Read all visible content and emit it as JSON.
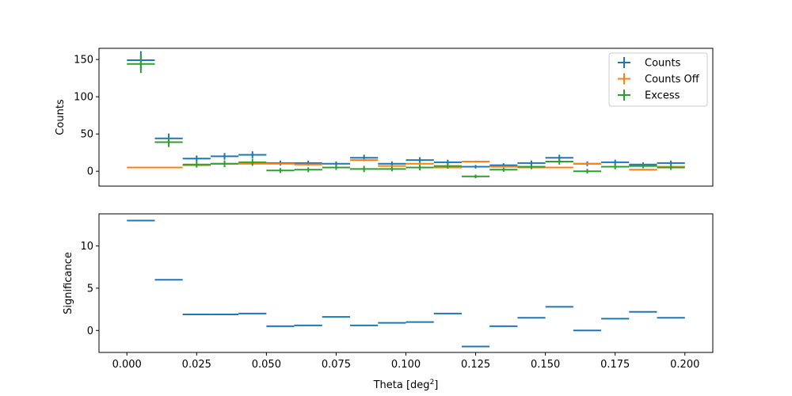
{
  "chart_data": [
    {
      "type": "errorbar",
      "ylabel": "Counts",
      "ylim": [
        -20,
        165
      ],
      "xlim": [
        -0.01,
        0.21
      ],
      "yticks": [
        0,
        50,
        100,
        150
      ],
      "show_xticks": false,
      "grid": false,
      "legend_position": "top-right",
      "x": [
        0.005,
        0.015,
        0.025,
        0.035,
        0.045,
        0.055,
        0.065,
        0.075,
        0.085,
        0.095,
        0.105,
        0.115,
        0.125,
        0.135,
        0.145,
        0.155,
        0.165,
        0.175,
        0.185,
        0.195
      ],
      "x_halfwidth": 0.005,
      "series": [
        {
          "name": "Counts",
          "color": "#1f77b4",
          "values": [
            149,
            44,
            17,
            20,
            22,
            11,
            11,
            10,
            18,
            10,
            15,
            12,
            6,
            8,
            11,
            18,
            10,
            12,
            9,
            11
          ],
          "yerr": [
            12.2,
            6.6,
            4.1,
            4.5,
            4.7,
            3.3,
            3.3,
            3.2,
            4.2,
            3.2,
            3.9,
            3.5,
            2.4,
            2.8,
            3.3,
            4.2,
            3.2,
            3.5,
            3.0,
            3.3
          ]
        },
        {
          "name": "Counts Off",
          "color": "#ff7f0e",
          "values": [
            5,
            5,
            8,
            10,
            10,
            10,
            9,
            5,
            15,
            7,
            10,
            5,
            13,
            6,
            5,
            5,
            10,
            6,
            2,
            6
          ],
          "yerr": [
            0.5,
            0.5,
            0.9,
            1.0,
            1.0,
            1.0,
            0.9,
            0.5,
            1.5,
            0.7,
            1.0,
            0.5,
            1.3,
            0.6,
            0.5,
            0.5,
            1.0,
            0.6,
            0.3,
            0.6
          ]
        },
        {
          "name": "Excess",
          "color": "#2ca02c",
          "values": [
            144,
            39,
            9,
            10,
            12,
            1,
            2,
            5,
            3,
            3,
            5,
            7,
            -7,
            2,
            6,
            13,
            0,
            6,
            7,
            5
          ],
          "yerr": [
            12.2,
            6.6,
            4.1,
            4.5,
            4.7,
            3.3,
            3.3,
            3.2,
            4.2,
            3.2,
            3.9,
            3.5,
            2.4,
            2.8,
            3.3,
            4.2,
            3.2,
            3.5,
            3.0,
            3.3
          ]
        }
      ]
    },
    {
      "type": "errorbar",
      "ylabel": "Significance",
      "xlabel_main": "Theta [deg",
      "xlabel_sup": "2",
      "xlabel_end": "]",
      "ylim": [
        -2.6,
        13.8
      ],
      "xlim": [
        -0.01,
        0.21
      ],
      "yticks": [
        0,
        5,
        10
      ],
      "xticks": [
        0.0,
        0.025,
        0.05,
        0.075,
        0.1,
        0.125,
        0.15,
        0.175,
        0.2
      ],
      "xtick_labels": [
        "0.000",
        "0.025",
        "0.050",
        "0.075",
        "0.100",
        "0.125",
        "0.150",
        "0.175",
        "0.200"
      ],
      "grid": false,
      "x": [
        0.005,
        0.015,
        0.025,
        0.035,
        0.045,
        0.055,
        0.065,
        0.075,
        0.085,
        0.095,
        0.105,
        0.115,
        0.125,
        0.135,
        0.145,
        0.155,
        0.165,
        0.175,
        0.185,
        0.195
      ],
      "x_halfwidth": 0.005,
      "series": [
        {
          "color": "#1f77b4",
          "values": [
            13.0,
            6.0,
            1.9,
            1.9,
            2.0,
            0.5,
            0.6,
            1.6,
            0.6,
            0.9,
            1.0,
            2.0,
            -1.9,
            0.5,
            1.5,
            2.8,
            0.0,
            1.4,
            2.2,
            1.5
          ]
        }
      ]
    }
  ]
}
